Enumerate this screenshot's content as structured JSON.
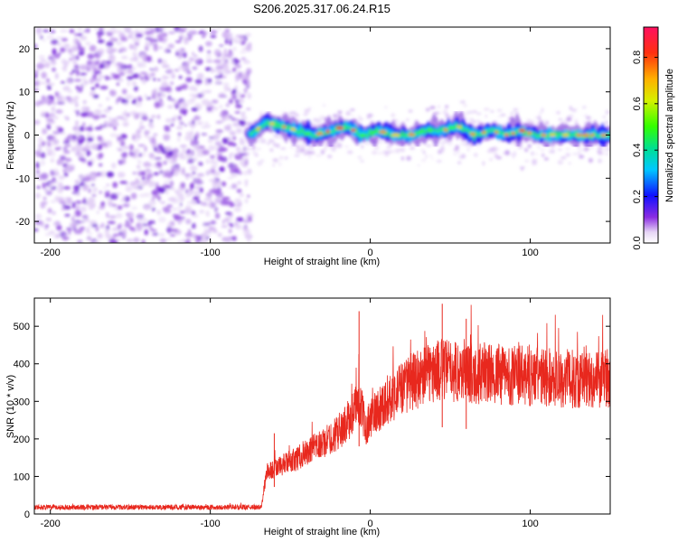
{
  "title": "S206.2025.317.06.24.R15",
  "chart_data": [
    {
      "type": "heatmap",
      "name": "spectrogram",
      "xlabel": "Height of straight line (km)",
      "ylabel": "Frequency (Hz)",
      "xlim": [
        -210,
        150
      ],
      "ylim": [
        -25,
        25
      ],
      "xticks": [
        -200,
        -100,
        0,
        100
      ],
      "xtick_labels": [
        "-200",
        "-100",
        "0",
        "100"
      ],
      "yticks": [
        20,
        10,
        0,
        -10,
        -20
      ],
      "ytick_labels": [
        "20",
        "10",
        "0",
        "-10",
        "-20"
      ],
      "noise_region_x": [
        -210,
        -75
      ],
      "signal_ridge": {
        "x": [
          -75,
          -65,
          -55,
          -45,
          -35,
          -25,
          -15,
          -5,
          5,
          15,
          25,
          35,
          45,
          55,
          65,
          75,
          85,
          95,
          105,
          115,
          125,
          135,
          150
        ],
        "y": [
          0,
          3,
          2,
          1,
          0,
          1,
          2,
          0,
          1,
          0,
          0,
          1,
          1,
          2,
          0,
          1,
          0,
          1,
          0,
          0,
          0,
          0,
          0
        ]
      },
      "colorbar": {
        "label": "Normalized spectral amplitude",
        "range": [
          0.0,
          0.93
        ],
        "ticks": [
          0.0,
          0.2,
          0.4,
          0.6,
          0.8
        ],
        "tick_labels": [
          "0.0",
          "0.2",
          "0.4",
          "0.6",
          "0.8"
        ]
      }
    },
    {
      "type": "line",
      "name": "snr",
      "xlabel": "Height of straight line (km)",
      "ylabel": "SNR (10 * v/v)",
      "xlim": [
        -210,
        150
      ],
      "ylim": [
        0,
        575
      ],
      "xticks": [
        -200,
        -100,
        0,
        100
      ],
      "xtick_labels": [
        "-200",
        "-100",
        "0",
        "100"
      ],
      "yticks": [
        0,
        100,
        200,
        300,
        400,
        500
      ],
      "ytick_labels": [
        "0",
        "100",
        "200",
        "300",
        "400",
        "500"
      ],
      "series": [
        {
          "name": "SNR",
          "color": "#e8281e",
          "x": [
            -210,
            -68,
            -65,
            -55,
            -45,
            -35,
            -25,
            -15,
            -7,
            -3,
            5,
            15,
            25,
            35,
            45,
            55,
            65,
            75,
            85,
            95,
            105,
            115,
            125,
            135,
            150
          ],
          "y": [
            18,
            18,
            110,
            130,
            150,
            175,
            200,
            240,
            300,
            235,
            280,
            320,
            350,
            370,
            385,
            380,
            375,
            372,
            370,
            368,
            365,
            362,
            360,
            358,
            362
          ]
        }
      ],
      "spikes": [
        {
          "x": -7,
          "y": 540
        },
        {
          "x": -60,
          "y": 215
        },
        {
          "x": 45,
          "y": 560
        },
        {
          "x": 60,
          "y": 520
        }
      ]
    }
  ]
}
